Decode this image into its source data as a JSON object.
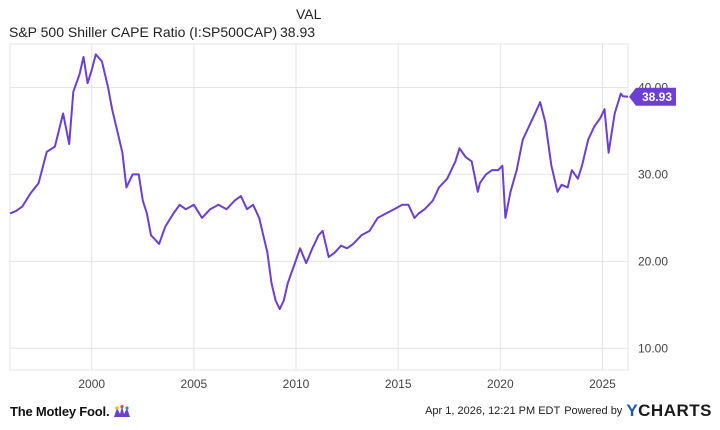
{
  "header": {
    "value_column_label": "VAL",
    "series_name": "S&P 500 Shiller CAPE Ratio (I:SP500CAP)",
    "series_value": "38.93"
  },
  "footer": {
    "logo_text": "The Motley Fool.",
    "timestamp": "Apr 1, 2026, 12:21 PM EDT",
    "powered_by": "Powered by",
    "brand_y": "Y",
    "brand_rest": "CHARTS"
  },
  "colors": {
    "line": "#6b3fd4",
    "grid": "#e4e4e4",
    "label": "#444444",
    "badge": "#6b3fd4"
  },
  "chart_data": {
    "type": "line",
    "title": "",
    "xlabel": "",
    "ylabel": "",
    "xlim": [
      1996.0,
      2026.25
    ],
    "ylim": [
      7.5,
      45.0
    ],
    "x_ticks": [
      2000,
      2005,
      2010,
      2015,
      2020,
      2025
    ],
    "x_tick_labels": [
      "2000",
      "2005",
      "2010",
      "2015",
      "2020",
      "2025"
    ],
    "y_ticks": [
      10,
      20,
      30,
      40
    ],
    "y_tick_labels": [
      "10.00",
      "20.00",
      "30.00",
      "40.00"
    ],
    "grid": true,
    "last_value_label": "38.93",
    "series": [
      {
        "name": "S&P 500 Shiller CAPE Ratio (I:SP500CAP)",
        "x": [
          1996.0,
          1996.3,
          1996.6,
          1997.0,
          1997.4,
          1997.8,
          1998.2,
          1998.6,
          1998.9,
          1999.1,
          1999.4,
          1999.6,
          1999.8,
          2000.0,
          2000.2,
          2000.5,
          2000.8,
          2001.0,
          2001.3,
          2001.5,
          2001.7,
          2002.0,
          2002.3,
          2002.5,
          2002.7,
          2002.9,
          2003.1,
          2003.3,
          2003.6,
          2004.0,
          2004.3,
          2004.6,
          2005.0,
          2005.4,
          2005.8,
          2006.2,
          2006.6,
          2007.0,
          2007.3,
          2007.6,
          2007.9,
          2008.2,
          2008.4,
          2008.6,
          2008.8,
          2009.0,
          2009.2,
          2009.4,
          2009.6,
          2009.9,
          2010.2,
          2010.5,
          2010.8,
          2011.1,
          2011.3,
          2011.6,
          2011.9,
          2012.2,
          2012.5,
          2012.8,
          2013.2,
          2013.6,
          2014.0,
          2014.4,
          2014.8,
          2015.2,
          2015.5,
          2015.8,
          2016.0,
          2016.3,
          2016.7,
          2017.0,
          2017.4,
          2017.8,
          2018.0,
          2018.3,
          2018.6,
          2018.9,
          2019.0,
          2019.3,
          2019.6,
          2019.9,
          2020.1,
          2020.25,
          2020.5,
          2020.8,
          2021.1,
          2021.4,
          2021.7,
          2021.95,
          2022.2,
          2022.5,
          2022.8,
          2023.0,
          2023.3,
          2023.5,
          2023.8,
          2024.0,
          2024.3,
          2024.6,
          2024.9,
          2025.1,
          2025.3,
          2025.6,
          2025.9,
          2026.0,
          2026.25
        ],
        "values": [
          25.5,
          25.8,
          26.3,
          27.8,
          29.0,
          32.6,
          33.2,
          37.0,
          33.5,
          39.5,
          41.5,
          43.5,
          40.5,
          42.0,
          43.8,
          43.0,
          40.0,
          37.5,
          34.5,
          32.5,
          28.5,
          30.0,
          30.0,
          27.0,
          25.5,
          23.0,
          22.5,
          22.0,
          24.0,
          25.5,
          26.5,
          26.0,
          26.5,
          25.0,
          26.0,
          26.5,
          26.0,
          27.0,
          27.5,
          26.0,
          26.5,
          25.0,
          23.0,
          21.0,
          17.5,
          15.5,
          14.5,
          15.5,
          17.5,
          19.5,
          21.5,
          19.8,
          21.5,
          23.0,
          23.5,
          20.5,
          21.0,
          21.8,
          21.5,
          22.0,
          23.0,
          23.5,
          25.0,
          25.5,
          26.0,
          26.5,
          26.5,
          25.0,
          25.5,
          26.0,
          27.0,
          28.5,
          29.5,
          31.5,
          33.0,
          32.0,
          31.5,
          28.0,
          29.0,
          30.0,
          30.5,
          30.5,
          31.0,
          25.0,
          28.0,
          30.5,
          34.0,
          35.5,
          37.0,
          38.3,
          36.0,
          31.0,
          28.0,
          28.8,
          28.5,
          30.5,
          29.5,
          31.0,
          34.0,
          35.5,
          36.5,
          37.5,
          32.5,
          37.0,
          39.3,
          39.0,
          38.93
        ]
      }
    ]
  }
}
